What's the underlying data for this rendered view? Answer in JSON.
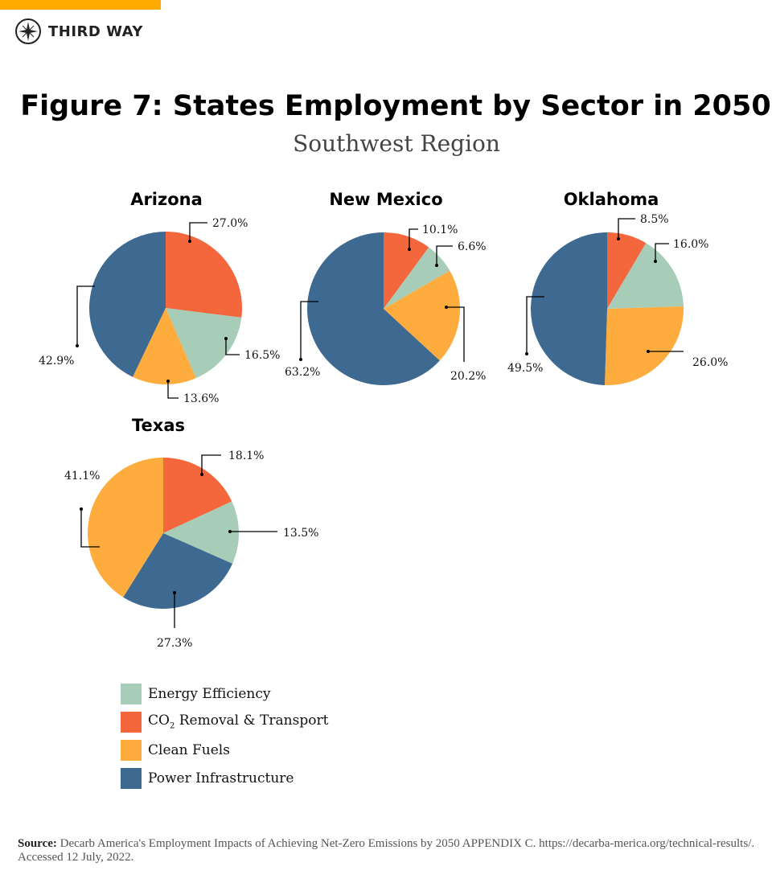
{
  "brand": {
    "name": "THIRD WAY",
    "logo_icon": "compass-icon",
    "accent": "#FFAA00"
  },
  "header": {
    "title": "Figure 7: States Employment by Sector in 2050",
    "subtitle": "Southwest Region"
  },
  "chart_data": [
    {
      "type": "pie",
      "title": "Arizona",
      "slices": [
        {
          "category": "CO2 Removal & Transport",
          "value": 27.0,
          "label": "27.0%"
        },
        {
          "category": "Energy Efficiency",
          "value": 16.5,
          "label": "16.5%"
        },
        {
          "category": "Clean Fuels",
          "value": 13.6,
          "label": "13.6%"
        },
        {
          "category": "Power Infrastructure",
          "value": 42.9,
          "label": "42.9%"
        }
      ]
    },
    {
      "type": "pie",
      "title": "New Mexico",
      "slices": [
        {
          "category": "CO2 Removal & Transport",
          "value": 10.1,
          "label": "10.1%"
        },
        {
          "category": "Energy Efficiency",
          "value": 6.6,
          "label": "6.6%"
        },
        {
          "category": "Clean Fuels",
          "value": 20.2,
          "label": "20.2%"
        },
        {
          "category": "Power Infrastructure",
          "value": 63.2,
          "label": "63.2%"
        }
      ]
    },
    {
      "type": "pie",
      "title": "Oklahoma",
      "slices": [
        {
          "category": "CO2 Removal & Transport",
          "value": 8.5,
          "label": "8.5%"
        },
        {
          "category": "Energy Efficiency",
          "value": 16.0,
          "label": "16.0%"
        },
        {
          "category": "Clean Fuels",
          "value": 26.0,
          "label": "26.0%"
        },
        {
          "category": "Power Infrastructure",
          "value": 49.5,
          "label": "49.5%"
        }
      ]
    },
    {
      "type": "pie",
      "title": "Texas",
      "slices": [
        {
          "category": "CO2 Removal & Transport",
          "value": 18.1,
          "label": "18.1%"
        },
        {
          "category": "Energy Efficiency",
          "value": 13.5,
          "label": "13.5%"
        },
        {
          "category": "Power Infrastructure",
          "value": 27.3,
          "label": "27.3%"
        },
        {
          "category": "Clean Fuels",
          "value": 41.1,
          "label": "41.1%"
        }
      ]
    }
  ],
  "legend": [
    {
      "label": "Energy Efficiency",
      "color": "#A7CDB8"
    },
    {
      "label": "CO",
      "sub": "2",
      "rest": " Removal & Transport",
      "color": "#F4663C"
    },
    {
      "label": "Clean Fuels",
      "color": "#FFAC3E"
    },
    {
      "label": "Power Infrastructure",
      "color": "#3E6990"
    }
  ],
  "colors": {
    "Energy Efficiency": "#A7CDB8",
    "CO2 Removal & Transport": "#F4663C",
    "Clean Fuels": "#FFAC3E",
    "Power Infrastructure": "#3E6990"
  },
  "source": {
    "label": "Source:",
    "text": " Decarb America's Employment Impacts of Achieving Net-Zero Emissions by 2050 APPENDIX C. https://decarba-merica.org/technical-results/. Accessed 12 July, 2022."
  }
}
